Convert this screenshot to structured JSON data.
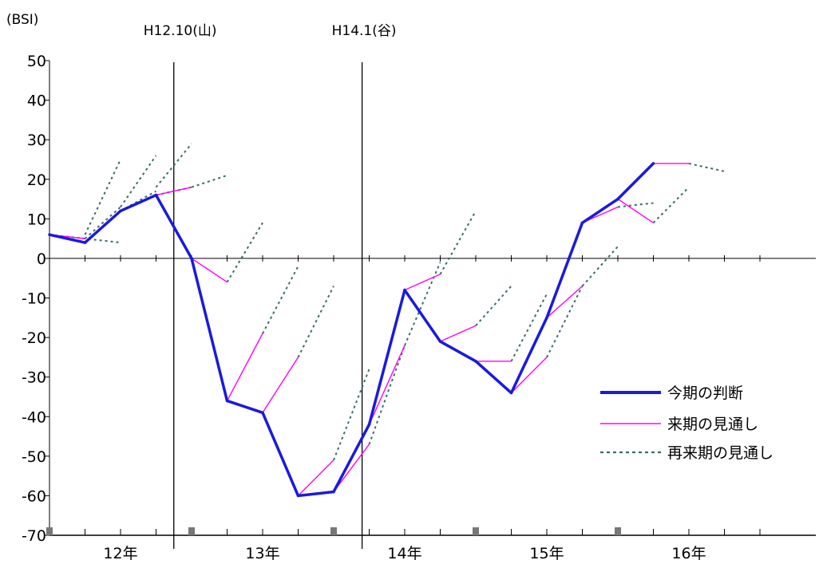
{
  "chart_data": {
    "type": "line",
    "y_unit_label": "(BSI)",
    "ylim": [
      -70,
      50
    ],
    "y_ticks": [
      50,
      40,
      30,
      20,
      10,
      0,
      -10,
      -20,
      -30,
      -40,
      -50,
      -60,
      -70
    ],
    "year_labels": [
      "12年",
      "13年",
      "14年",
      "15年",
      "16年"
    ],
    "quarters": 21,
    "vertical_markers": [
      {
        "label": "H12.10(山)",
        "x": 3.5
      },
      {
        "label": "H14.1(谷)",
        "x": 8.8
      }
    ],
    "series": [
      {
        "name": "今期の判断",
        "color": "#1a1adc",
        "style": "thick",
        "points": [
          [
            0,
            6
          ],
          [
            1,
            4
          ],
          [
            2,
            12
          ],
          [
            3,
            16
          ],
          [
            4,
            0
          ],
          [
            5,
            -36
          ],
          [
            6,
            -39
          ],
          [
            7,
            -60
          ],
          [
            8,
            -59
          ],
          [
            9,
            -42
          ],
          [
            10,
            -8
          ],
          [
            11,
            -21
          ],
          [
            12,
            -26
          ],
          [
            13,
            -34
          ],
          [
            14,
            -15
          ],
          [
            15,
            9
          ],
          [
            16,
            15
          ],
          [
            17,
            24
          ]
        ]
      },
      {
        "name": "来期の見通し",
        "color": "#ff00ff",
        "style": "thin",
        "segments": [
          [
            [
              0,
              6
            ],
            [
              1,
              5
            ]
          ],
          [
            [
              1,
              4
            ],
            [
              2,
              12
            ]
          ],
          [
            [
              2,
              12
            ],
            [
              3,
              16
            ]
          ],
          [
            [
              3,
              16
            ],
            [
              4,
              18
            ]
          ],
          [
            [
              4,
              0
            ],
            [
              5,
              -6
            ]
          ],
          [
            [
              5,
              -36
            ],
            [
              6,
              -19
            ]
          ],
          [
            [
              6,
              -39
            ],
            [
              7,
              -25
            ]
          ],
          [
            [
              7,
              -60
            ],
            [
              8,
              -51
            ]
          ],
          [
            [
              8,
              -59
            ],
            [
              9,
              -47
            ]
          ],
          [
            [
              9,
              -42
            ],
            [
              10,
              -22
            ]
          ],
          [
            [
              10,
              -8
            ],
            [
              11,
              -4
            ]
          ],
          [
            [
              11,
              -21
            ],
            [
              12,
              -17
            ]
          ],
          [
            [
              12,
              -26
            ],
            [
              13,
              -26
            ]
          ],
          [
            [
              13,
              -34
            ],
            [
              14,
              -25
            ]
          ],
          [
            [
              14,
              -15
            ],
            [
              15,
              -7
            ]
          ],
          [
            [
              15,
              9
            ],
            [
              16,
              13
            ]
          ],
          [
            [
              16,
              15
            ],
            [
              17,
              9
            ]
          ],
          [
            [
              17,
              24
            ],
            [
              18,
              24
            ]
          ]
        ]
      },
      {
        "name": "再来期の見通し",
        "color": "#3a6b6b",
        "style": "dotted",
        "segments": [
          [
            [
              0,
              6
            ],
            [
              2,
              4
            ]
          ],
          [
            [
              1,
              5
            ],
            [
              2,
              13
            ]
          ],
          [
            [
              2,
              12
            ],
            [
              3,
              17
            ]
          ],
          [
            [
              1,
              6
            ],
            [
              2,
              25
            ]
          ],
          [
            [
              2,
              13
            ],
            [
              3,
              26
            ]
          ],
          [
            [
              3,
              16
            ],
            [
              4,
              18
            ]
          ],
          [
            [
              3,
              18
            ],
            [
              4,
              29
            ]
          ],
          [
            [
              4,
              18
            ],
            [
              5,
              21
            ]
          ],
          [
            [
              5,
              -6
            ],
            [
              6,
              9
            ]
          ],
          [
            [
              6,
              -19
            ],
            [
              7,
              -2
            ]
          ],
          [
            [
              7,
              -25
            ],
            [
              8,
              -7
            ]
          ],
          [
            [
              8,
              -51
            ],
            [
              9,
              -28
            ]
          ],
          [
            [
              9,
              -47
            ],
            [
              10,
              -22
            ]
          ],
          [
            [
              10,
              -22
            ],
            [
              11,
              -1
            ]
          ],
          [
            [
              11,
              -4
            ],
            [
              12,
              12
            ]
          ],
          [
            [
              12,
              -17
            ],
            [
              13,
              -7
            ]
          ],
          [
            [
              13,
              -26
            ],
            [
              14,
              -9
            ]
          ],
          [
            [
              14,
              -25
            ],
            [
              15,
              -7
            ]
          ],
          [
            [
              15,
              -7
            ],
            [
              16,
              3
            ]
          ],
          [
            [
              16,
              13
            ],
            [
              17,
              14
            ]
          ],
          [
            [
              17,
              9
            ],
            [
              18,
              18
            ]
          ],
          [
            [
              18,
              24
            ],
            [
              19,
              22
            ]
          ]
        ]
      }
    ]
  }
}
